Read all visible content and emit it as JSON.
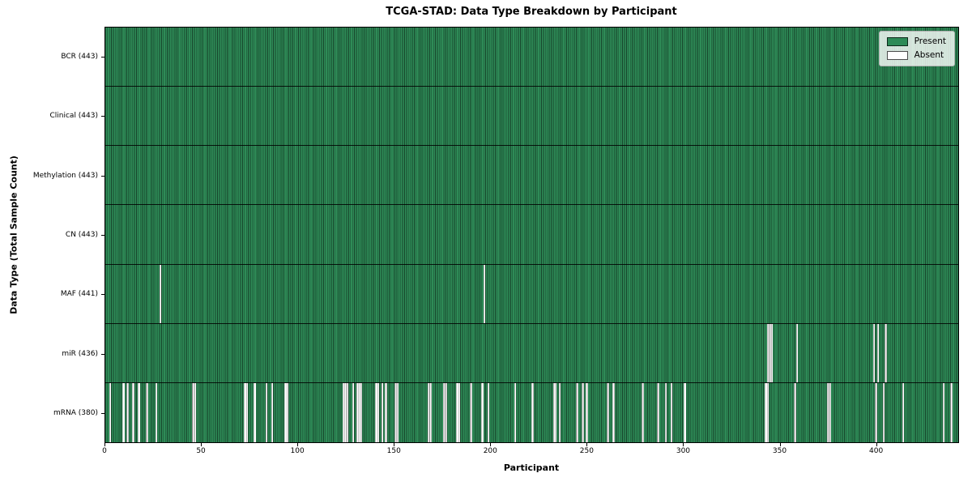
{
  "title": "TCGA-STAD: Data Type Breakdown by Participant",
  "axes": {
    "xlabel": "Participant",
    "ylabel": "Data Type (Total Sample Count)"
  },
  "legend": {
    "present_label": "Present",
    "absent_label": "Absent",
    "position": "upper right"
  },
  "colors": {
    "present": "#2e8b57",
    "absent": "#ffffff",
    "bar_edge": "#000000",
    "legend_border": "#b0b0b0",
    "background": "#ffffff"
  },
  "chart_data": {
    "type": "heatmap",
    "title": "TCGA-STAD: Data Type Breakdown by Participant",
    "xlabel": "Participant",
    "ylabel": "Data Type (Total Sample Count)",
    "legend_entries": [
      "Present",
      "Absent"
    ],
    "grid": false,
    "x_ticks": [
      0,
      50,
      100,
      150,
      200,
      250,
      300,
      350,
      400
    ],
    "x_range": [
      0,
      443
    ],
    "total_participants": 443,
    "rows": [
      {
        "label": "BCR (443)",
        "data_type": "BCR",
        "present_count": 443,
        "absent_count": 0,
        "absent_participants": []
      },
      {
        "label": "Clinical (443)",
        "data_type": "Clinical",
        "present_count": 443,
        "absent_count": 0,
        "absent_participants": []
      },
      {
        "label": "Methylation (443)",
        "data_type": "Methylation",
        "present_count": 443,
        "absent_count": 0,
        "absent_participants": []
      },
      {
        "label": "CN (443)",
        "data_type": "CN",
        "present_count": 443,
        "absent_count": 0,
        "absent_participants": []
      },
      {
        "label": "MAF (441)",
        "data_type": "MAF",
        "present_count": 441,
        "absent_count": 2,
        "absent_participants": [
          28,
          196
        ]
      },
      {
        "label": "miR (436)",
        "data_type": "miR",
        "present_count": 436,
        "absent_count": 7,
        "absent_participants": [
          343,
          344,
          345,
          358,
          398,
          400,
          404
        ]
      },
      {
        "label": "mRNA (380)",
        "data_type": "mRNA",
        "present_count": 380,
        "absent_count": 63,
        "absent_participants": [
          2,
          9,
          11,
          14,
          17,
          21,
          26,
          45,
          46,
          72,
          73,
          77,
          83,
          86,
          93,
          94,
          123,
          124,
          125,
          128,
          130,
          131,
          132,
          140,
          141,
          143,
          145,
          150,
          151,
          167,
          168,
          175,
          176,
          182,
          183,
          189,
          195,
          198,
          212,
          221,
          232,
          233,
          235,
          244,
          247,
          249,
          260,
          263,
          278,
          286,
          290,
          293,
          300,
          342,
          343,
          357,
          374,
          375,
          399,
          403,
          413,
          434,
          438
        ]
      }
    ]
  }
}
